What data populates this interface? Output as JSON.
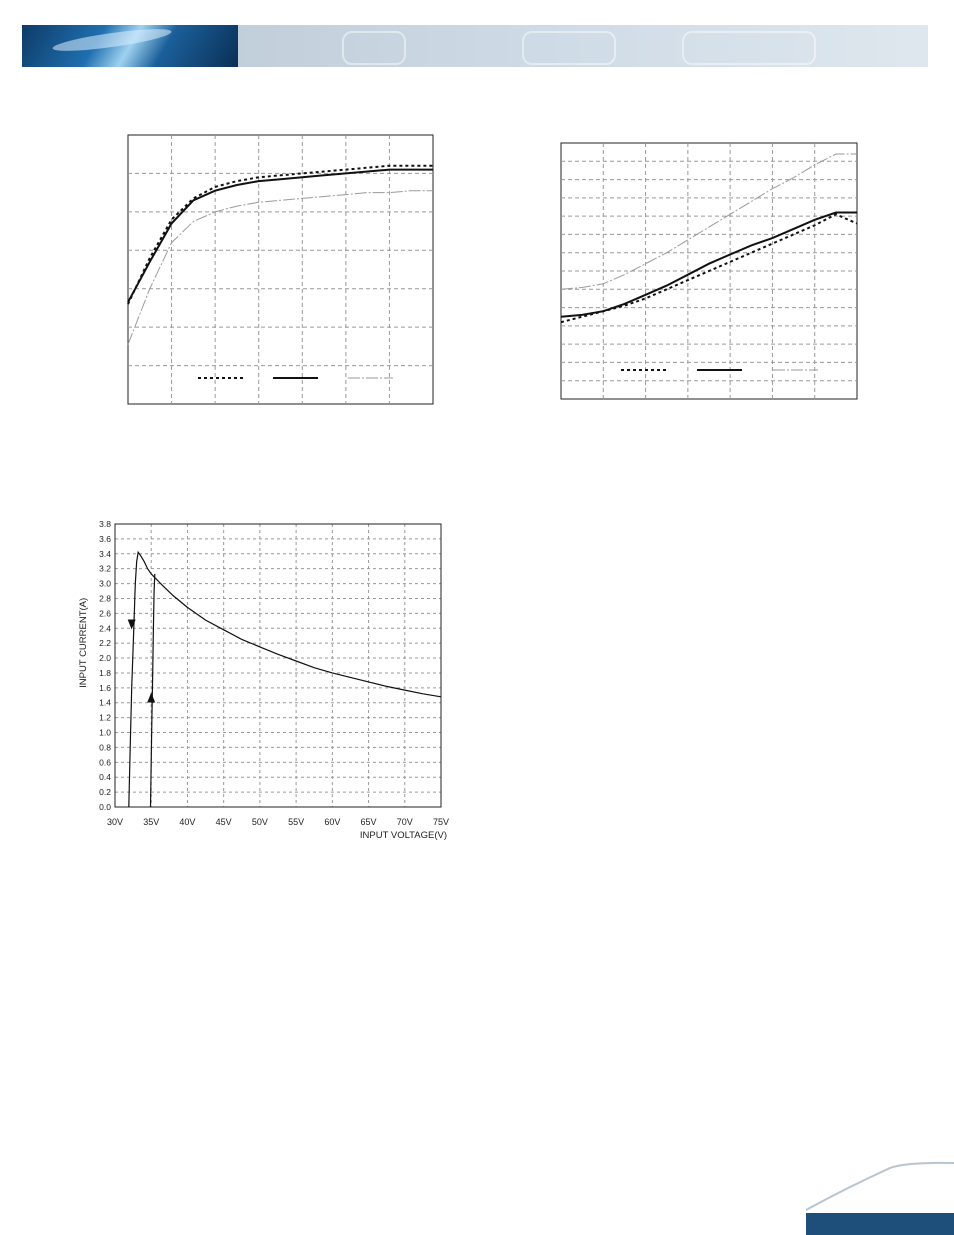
{
  "chart_data": [
    {
      "type": "line",
      "title": "",
      "xlabel": "",
      "ylabel": "",
      "grid": true,
      "x": [
        0,
        1,
        2,
        3,
        4,
        5,
        6,
        7,
        8,
        9,
        10,
        11,
        12,
        13,
        14
      ],
      "ylim": [
        0,
        14
      ],
      "series": [
        {
          "style": "dotted",
          "values": [
            5.2,
            7.6,
            9.6,
            10.7,
            11.3,
            11.6,
            11.8,
            11.9,
            12.0,
            12.1,
            12.2,
            12.3,
            12.4,
            12.4,
            12.4
          ]
        },
        {
          "style": "solid",
          "values": [
            5.3,
            7.4,
            9.4,
            10.6,
            11.1,
            11.4,
            11.6,
            11.7,
            11.8,
            11.9,
            12.0,
            12.1,
            12.2,
            12.2,
            12.2
          ]
        },
        {
          "style": "dashed-light",
          "values": [
            3.1,
            6.0,
            8.4,
            9.5,
            10.0,
            10.3,
            10.5,
            10.6,
            10.7,
            10.8,
            10.9,
            11.0,
            11.0,
            11.1,
            11.1
          ]
        }
      ]
    },
    {
      "type": "line",
      "title": "",
      "xlabel": "",
      "ylabel": "",
      "grid": true,
      "x": [
        0,
        1,
        2,
        3,
        4,
        5,
        6,
        7,
        8,
        9,
        10,
        11,
        12,
        13,
        14
      ],
      "ylim": [
        0,
        14
      ],
      "series": [
        {
          "style": "dotted",
          "values": [
            4.2,
            4.5,
            4.8,
            5.1,
            5.5,
            6.0,
            6.5,
            7.0,
            7.5,
            8.0,
            8.5,
            9.0,
            9.5,
            10.1,
            9.6
          ]
        },
        {
          "style": "solid",
          "values": [
            4.5,
            4.6,
            4.8,
            5.2,
            5.7,
            6.2,
            6.8,
            7.4,
            7.9,
            8.4,
            8.8,
            9.3,
            9.8,
            10.2,
            10.2
          ]
        },
        {
          "style": "dashed-light",
          "values": [
            6.0,
            6.1,
            6.3,
            6.8,
            7.4,
            8.0,
            8.7,
            9.4,
            10.1,
            10.8,
            11.5,
            12.1,
            12.8,
            13.4,
            13.4
          ]
        }
      ]
    },
    {
      "type": "line",
      "title": "",
      "xlabel": "INPUT VOLTAGE(V)",
      "ylabel": "INPUT CURRENT(A)",
      "grid": true,
      "xlim": [
        30,
        75
      ],
      "ylim": [
        0,
        3.8
      ],
      "x_tick_labels": [
        "30V",
        "35V",
        "40V",
        "45V",
        "50V",
        "55V",
        "60V",
        "65V",
        "70V",
        "75V"
      ],
      "y_tick_labels": [
        "0.0",
        "0.2",
        "0.4",
        "0.6",
        "0.8",
        "1.0",
        "1.2",
        "1.4",
        "1.6",
        "1.8",
        "2.0",
        "2.2",
        "2.4",
        "2.6",
        "2.8",
        "3.0",
        "3.2",
        "3.4",
        "3.6",
        "3.8"
      ],
      "series": [
        {
          "name": "",
          "x": [
            31.9,
            32.1,
            32.3,
            32.6,
            32.8,
            33.0,
            33.2,
            33.5,
            34.0,
            34.5,
            35.0,
            36.5,
            38.0,
            40.0,
            42.5,
            45.0,
            47.5,
            50.0,
            52.5,
            55.0,
            57.5,
            60.0,
            62.5,
            65.0,
            67.5,
            70.0,
            72.5,
            75.0
          ],
          "y": [
            0.0,
            0.8,
            1.6,
            2.4,
            3.0,
            3.3,
            3.42,
            3.38,
            3.3,
            3.2,
            3.13,
            2.98,
            2.84,
            2.68,
            2.51,
            2.38,
            2.25,
            2.15,
            2.05,
            1.96,
            1.87,
            1.8,
            1.74,
            1.68,
            1.62,
            1.57,
            1.52,
            1.48
          ]
        },
        {
          "name": "",
          "x": [
            34.9,
            35.0,
            35.1,
            35.2,
            35.3,
            35.4,
            35.5
          ],
          "y": [
            0.0,
            0.6,
            1.2,
            1.8,
            2.4,
            2.9,
            3.13
          ]
        }
      ],
      "arrows": [
        {
          "direction": "down",
          "x": 32.3,
          "y": 2.45
        },
        {
          "direction": "up",
          "x": 35.0,
          "y": 1.47
        }
      ]
    }
  ]
}
